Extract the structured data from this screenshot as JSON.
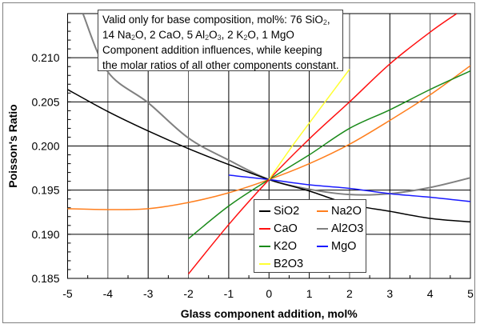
{
  "chart_data": {
    "type": "line",
    "title": "",
    "xlabel": "Glass component addition, mol%",
    "ylabel": "Poisson's Ratio",
    "xlim": [
      -5,
      5
    ],
    "ylim": [
      0.185,
      0.215
    ],
    "x_ticks": [
      "-5",
      "-4",
      "-3",
      "-2",
      "-1",
      "0",
      "1",
      "2",
      "3",
      "4",
      "5"
    ],
    "y_ticks": [
      "0.185",
      "0.190",
      "0.195",
      "0.200",
      "0.205",
      "0.210"
    ],
    "grid": true,
    "legend_position": "bottom-center-right",
    "series": [
      {
        "name": "SiO2",
        "color": "#000000",
        "x": [
          -5,
          -4,
          -3,
          -2,
          -1,
          0,
          1,
          2,
          3,
          4,
          5
        ],
        "y": [
          0.2064,
          0.2039,
          0.2017,
          0.1997,
          0.1979,
          0.1962,
          0.1949,
          0.1934,
          0.1926,
          0.1918,
          0.1914
        ]
      },
      {
        "name": "Na2O",
        "color": "#ff7f1e",
        "x": [
          -5,
          -4,
          -3,
          -2,
          -1,
          0,
          1,
          2,
          3,
          4,
          5
        ],
        "y": [
          0.1929,
          0.1928,
          0.1929,
          0.1936,
          0.1947,
          0.1962,
          0.198,
          0.2002,
          0.2029,
          0.2058,
          0.2091
        ]
      },
      {
        "name": "CaO",
        "color": "#ff1010",
        "x": [
          -2,
          -1,
          0,
          1,
          2,
          3,
          4,
          4.66
        ],
        "y": [
          0.1855,
          0.1911,
          0.1962,
          0.2008,
          0.205,
          0.2093,
          0.2129,
          0.215
        ]
      },
      {
        "name": "Al2O3",
        "color": "#808080",
        "x": [
          -4.62,
          -4,
          -3,
          -2,
          -1,
          0,
          1,
          2,
          3,
          4,
          5
        ],
        "y": [
          0.215,
          0.2084,
          0.2049,
          0.2009,
          0.1984,
          0.1962,
          0.1951,
          0.1945,
          0.1946,
          0.1953,
          0.1964
        ]
      },
      {
        "name": "K2O",
        "color": "#1a8a1a",
        "x": [
          -2,
          -1,
          0,
          1,
          2,
          3,
          4,
          5
        ],
        "y": [
          0.1895,
          0.1932,
          0.1962,
          0.199,
          0.202,
          0.2041,
          0.2064,
          0.2085
        ]
      },
      {
        "name": "MgO",
        "color": "#1a1aff",
        "x": [
          -1,
          0,
          1,
          2,
          3,
          4,
          5
        ],
        "y": [
          0.1967,
          0.1962,
          0.1956,
          0.1952,
          0.1946,
          0.1942,
          0.1937
        ]
      },
      {
        "name": "B2O3",
        "color": "#ffff33",
        "x": [
          0,
          0.5,
          1,
          2
        ],
        "y": [
          0.1962,
          0.1995,
          0.2026,
          0.2087
        ]
      }
    ],
    "annotation": [
      [
        {
          "t": "Valid only for base composition, mol%: 76 SiO"
        },
        {
          "sub": "2"
        },
        {
          "t": ","
        }
      ],
      [
        {
          "t": "14 Na"
        },
        {
          "sub": "2"
        },
        {
          "t": "O, 2 CaO, 5 Al"
        },
        {
          "sub": "2"
        },
        {
          "t": "O"
        },
        {
          "sub": "3"
        },
        {
          "t": ", 2 K"
        },
        {
          "sub": "2"
        },
        {
          "t": "O, 1 MgO"
        }
      ],
      [
        {
          "t": "Component addition influences, while keeping"
        }
      ],
      [
        {
          "t": "the molar ratios of all other components constant."
        }
      ]
    ]
  }
}
